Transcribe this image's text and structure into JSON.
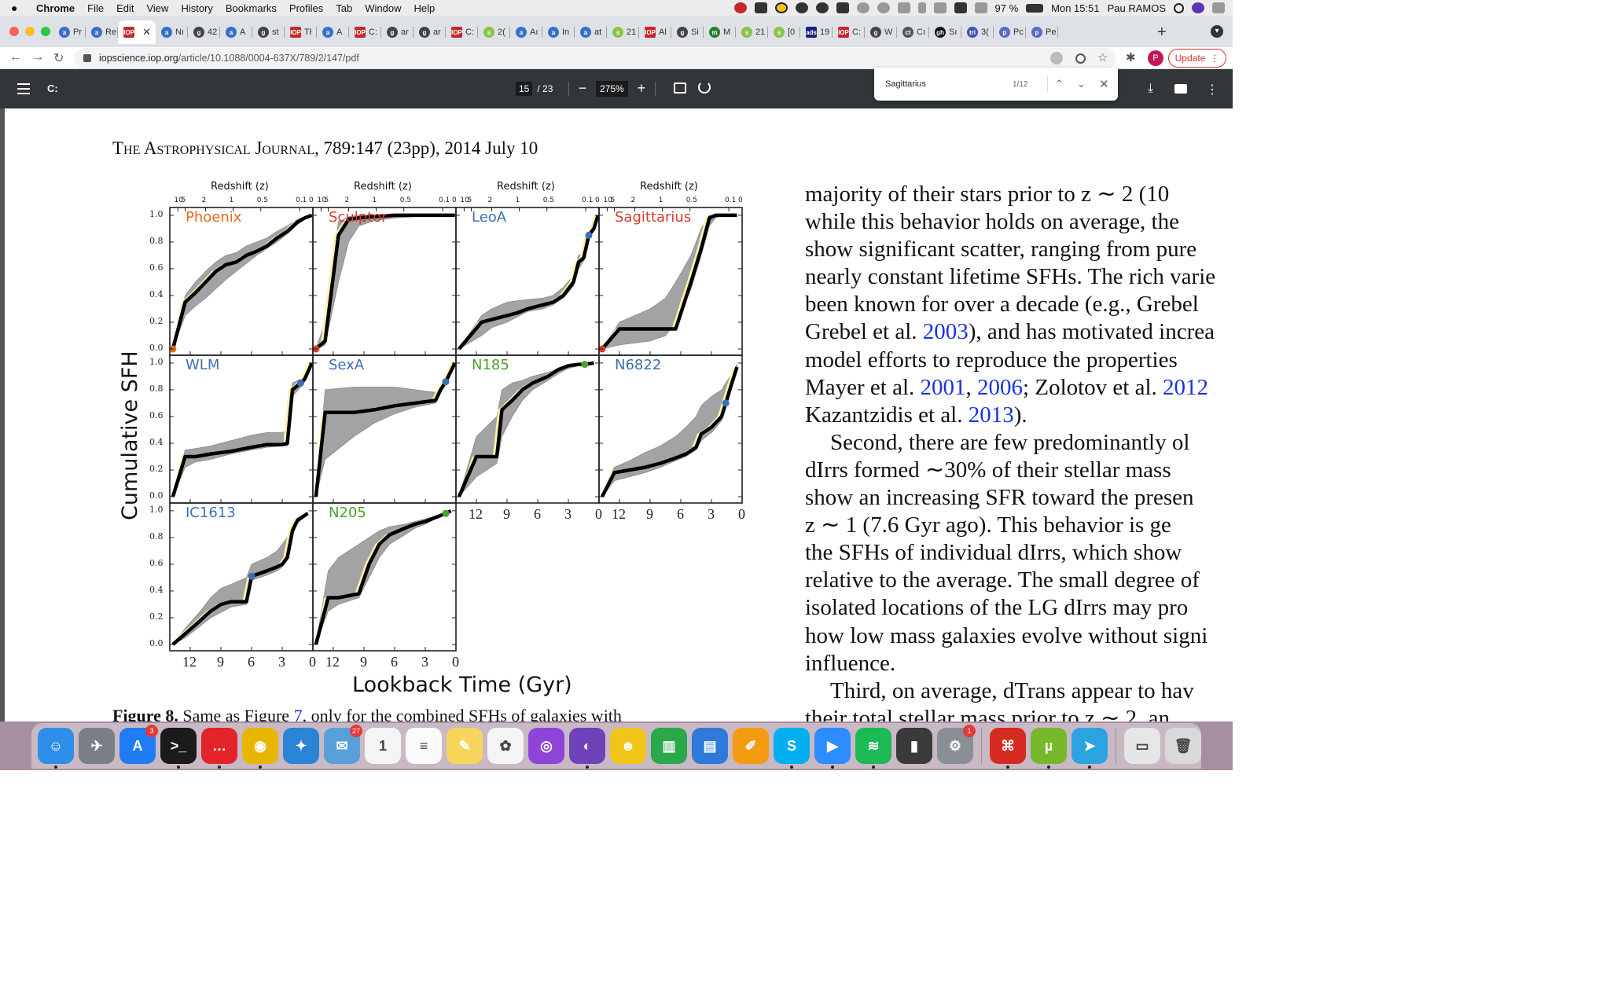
{
  "menubar": {
    "app_name": "Chrome",
    "menus": [
      "File",
      "Edit",
      "View",
      "History",
      "Bookmarks",
      "Profiles",
      "Tab",
      "Window",
      "Help"
    ],
    "battery": "97 %",
    "clock": "Mon 15:51",
    "user": "Pau RAMOS"
  },
  "tabs": [
    {
      "label": "Pr",
      "favicon": "a",
      "color": "#3b6ecb"
    },
    {
      "label": "Re",
      "favicon": "a",
      "color": "#3b6ecb"
    },
    {
      "label": "IOP",
      "favicon": "IOP",
      "color": "#c62828",
      "active": true
    },
    {
      "label": "Nı",
      "favicon": "a",
      "color": "#3b6ecb"
    },
    {
      "label": "42",
      "favicon": "g",
      "color": "#444"
    },
    {
      "label": "A",
      "favicon": "a",
      "color": "#3b6ecb"
    },
    {
      "label": "st",
      "favicon": "g",
      "color": "#444"
    },
    {
      "label": "Tł",
      "favicon": "IOP",
      "color": "#c62828"
    },
    {
      "label": "A",
      "favicon": "a",
      "color": "#3b6ecb"
    },
    {
      "label": "C:",
      "favicon": "IOP",
      "color": "#c62828"
    },
    {
      "label": "ar",
      "favicon": "g",
      "color": "#444"
    },
    {
      "label": "ar",
      "favicon": "g",
      "color": "#444"
    },
    {
      "label": "C:",
      "favicon": "IOP",
      "color": "#c62828"
    },
    {
      "label": "2(",
      "favicon": "s",
      "color": "#8bc34a"
    },
    {
      "label": "Aı",
      "favicon": "a",
      "color": "#3b6ecb"
    },
    {
      "label": "In",
      "favicon": "a",
      "color": "#3b6ecb"
    },
    {
      "label": "at",
      "favicon": "a",
      "color": "#3b6ecb"
    },
    {
      "label": "21",
      "favicon": "s",
      "color": "#8bc34a"
    },
    {
      "label": "Al",
      "favicon": "IOP",
      "color": "#c62828"
    },
    {
      "label": "Si",
      "favicon": "g",
      "color": "#444"
    },
    {
      "label": "M",
      "favicon": "m",
      "color": "#2e7d32"
    },
    {
      "label": "21",
      "favicon": "s",
      "color": "#8bc34a"
    },
    {
      "label": "[0",
      "favicon": "s",
      "color": "#8bc34a"
    },
    {
      "label": "19",
      "favicon": "ads",
      "color": "#1a237e"
    },
    {
      "label": "C:",
      "favicon": "IOP",
      "color": "#c62828"
    },
    {
      "label": "W",
      "favicon": "g",
      "color": "#444"
    },
    {
      "label": "Cı",
      "favicon": "ct",
      "color": "#555"
    },
    {
      "label": "Sı",
      "favicon": "gh",
      "color": "#111"
    },
    {
      "label": "3(",
      "favicon": "tri",
      "color": "#3f51b5"
    },
    {
      "label": "Pc",
      "favicon": "p",
      "color": "#5c6bc0"
    },
    {
      "label": "Pe",
      "favicon": "p",
      "color": "#5c6bc0"
    }
  ],
  "toolbar": {
    "url_host": "iopscience.iop.org",
    "url_path": "/article/10.1088/0004-637X/789/2/147/pdf",
    "profile_initial": "P",
    "update_label": "Update"
  },
  "pdf": {
    "title": "C:",
    "page_current": "15",
    "page_total": "/ 23",
    "zoom": "275%"
  },
  "find": {
    "query": "Sagittarius",
    "count": "1/12"
  },
  "page": {
    "journal_sc": "The Astrophysical Journal",
    "journal_rest": ", 789:147 (23pp), 2014 July 10",
    "caption_label": "Figure 8.",
    "caption_text_a": " Same as Figure ",
    "caption_ref": "7",
    "caption_text_b": ", only for the combined SFHs of galaxies with",
    "text_lines": [
      {
        "t": "majority of their stars prior to z ∼ 2 (10"
      },
      {
        "t": "while this behavior holds on average, the"
      },
      {
        "t": "show significant scatter, ranging from pure"
      },
      {
        "t": "nearly constant lifetime SFHs. The rich varie"
      },
      {
        "t": "been known for over a decade (e.g., Grebel"
      },
      {
        "t": "Grebel et al. ",
        "ref": "2003",
        "t2": "), and has motivated increa"
      },
      {
        "t": "model efforts to reproduce the properties"
      },
      {
        "t": "Mayer et al. ",
        "ref": "2001",
        "t2": ", ",
        "ref2": "2006",
        "t3": "; Zolotov et al. ",
        "ref3": "2012"
      },
      {
        "t": "Kazantzidis et al. ",
        "ref": "2013",
        "t2": ")."
      },
      {
        "t": "Second, there are few predominantly ol",
        "indent": true
      },
      {
        "t": "dIrrs formed ∼30% of their stellar mass"
      },
      {
        "t": "show an increasing SFR toward the presen"
      },
      {
        "t": "z ∼ 1 (7.6 Gyr ago). This behavior is ge"
      },
      {
        "t": "the SFHs of individual dIrrs, which show"
      },
      {
        "t": "relative to the average. The small degree of"
      },
      {
        "t": "isolated locations of the LG dIrrs may pro"
      },
      {
        "t": "how low mass galaxies evolve without signi"
      },
      {
        "t": "influence."
      },
      {
        "t": "Third, on average, dTrans appear to hav",
        "indent": true
      },
      {
        "t": "their total stellar mass prior to z ∼ 2, an"
      }
    ]
  },
  "chart_data": {
    "type": "line",
    "ylabel": "Cumulative SFH",
    "xlabel": "Lookback Time (Gyr)",
    "top_axis_label": "Redshift (z)",
    "x_ticks": [
      12,
      9,
      6,
      3,
      0
    ],
    "x_tick_labels": [
      "12",
      "9",
      "6",
      "3",
      "0"
    ],
    "y_ticks": [
      "0.0",
      "0.2",
      "0.4",
      "0.6",
      "0.8",
      "1.0"
    ],
    "z_ticks": [
      "10",
      "5",
      "2",
      "1",
      "0.5",
      "0.1",
      "0"
    ],
    "z_tick_values": [
      13.2,
      12.5,
      10.5,
      7.8,
      5.1,
      1.3,
      0
    ],
    "xlim": [
      14,
      0
    ],
    "ylim": [
      0,
      1.05
    ],
    "panels": [
      {
        "name": "Phoenix",
        "color": "#e06a1b",
        "dot": {
          "x": 13.7,
          "y": 0.0,
          "color": "#e06a1b"
        },
        "x": [
          13.7,
          12.5,
          11.5,
          10.5,
          9.5,
          8.5,
          7.5,
          6.5,
          5.5,
          4.5,
          3.5,
          2.5,
          1.5,
          0.8,
          0.1
        ],
        "y": [
          0.0,
          0.35,
          0.42,
          0.5,
          0.58,
          0.63,
          0.65,
          0.7,
          0.73,
          0.77,
          0.83,
          0.88,
          0.95,
          0.98,
          1.0
        ],
        "lo": [
          0.0,
          0.25,
          0.32,
          0.38,
          0.45,
          0.52,
          0.58,
          0.64,
          0.7,
          0.75,
          0.8,
          0.86,
          0.93,
          0.97,
          1.0
        ],
        "hi": [
          0.0,
          0.4,
          0.5,
          0.58,
          0.65,
          0.7,
          0.72,
          0.77,
          0.8,
          0.83,
          0.88,
          0.92,
          0.97,
          0.99,
          1.0
        ]
      },
      {
        "name": "Sculptor",
        "color": "#d63b2b",
        "dot": {
          "x": 13.7,
          "y": 0.0,
          "color": "#d63b2b"
        },
        "x": [
          13.7,
          12.8,
          11.5,
          10.5,
          9.5,
          8,
          6,
          4,
          2,
          0.1
        ],
        "y": [
          0.0,
          0.06,
          0.85,
          0.97,
          0.98,
          0.99,
          1.0,
          1.0,
          1.0,
          1.0
        ],
        "lo": [
          0.0,
          0.03,
          0.5,
          0.8,
          0.92,
          0.96,
          0.98,
          0.99,
          1.0,
          1.0
        ],
        "hi": [
          0.0,
          0.2,
          0.95,
          0.99,
          1.0,
          1.0,
          1.0,
          1.0,
          1.0,
          1.0
        ]
      },
      {
        "name": "LeoA",
        "color": "#3d6fb5",
        "dot": {
          "x": 1.0,
          "y": 0.85,
          "color": "#3d6fb5"
        },
        "x": [
          13.7,
          11.5,
          10.5,
          9,
          8,
          7,
          5.5,
          4.5,
          3.5,
          2.5,
          2,
          1.5,
          1.0,
          0.5,
          0.1
        ],
        "y": [
          0.0,
          0.2,
          0.22,
          0.25,
          0.27,
          0.3,
          0.33,
          0.35,
          0.4,
          0.5,
          0.65,
          0.68,
          0.85,
          0.9,
          1.0
        ],
        "lo": [
          0.0,
          0.1,
          0.16,
          0.2,
          0.24,
          0.28,
          0.3,
          0.33,
          0.38,
          0.47,
          0.6,
          0.66,
          0.83,
          0.89,
          1.0
        ],
        "hi": [
          0.0,
          0.25,
          0.3,
          0.35,
          0.36,
          0.37,
          0.38,
          0.4,
          0.46,
          0.55,
          0.7,
          0.72,
          0.87,
          0.92,
          1.0
        ]
      },
      {
        "name": "Sagittarius",
        "color": "#d63b2b",
        "dot": {
          "x": 13.7,
          "y": 0.0,
          "color": "#d63b2b"
        },
        "x": [
          13.7,
          12,
          9,
          7.5,
          6.5,
          5,
          4,
          3.2,
          2.6,
          2,
          1,
          0.5
        ],
        "y": [
          0.0,
          0.15,
          0.15,
          0.15,
          0.15,
          0.5,
          0.75,
          0.98,
          1.0,
          1.0,
          1.0,
          1.0
        ],
        "lo": [
          0.0,
          0.03,
          0.06,
          0.1,
          0.2,
          0.45,
          0.7,
          0.92,
          0.98,
          1.0,
          1.0,
          1.0
        ],
        "hi": [
          0.0,
          0.2,
          0.3,
          0.38,
          0.5,
          0.7,
          0.9,
          1.0,
          1.0,
          1.0,
          1.0,
          1.0
        ]
      },
      {
        "name": "WLM",
        "color": "#3d6fb5",
        "dot": {
          "x": 1.2,
          "y": 0.85,
          "color": "#3d6fb5"
        },
        "x": [
          13.7,
          12.5,
          11.5,
          10,
          8,
          6,
          4.5,
          3,
          2.5,
          2,
          1.2,
          0.8,
          0.1
        ],
        "y": [
          0.0,
          0.3,
          0.3,
          0.32,
          0.34,
          0.37,
          0.39,
          0.39,
          0.4,
          0.8,
          0.85,
          0.88,
          1.0
        ],
        "lo": [
          0.0,
          0.22,
          0.26,
          0.28,
          0.32,
          0.35,
          0.37,
          0.38,
          0.38,
          0.75,
          0.82,
          0.86,
          1.0
        ],
        "hi": [
          0.0,
          0.35,
          0.36,
          0.38,
          0.42,
          0.46,
          0.48,
          0.48,
          0.5,
          0.85,
          0.88,
          0.9,
          1.0
        ]
      },
      {
        "name": "SexA",
        "color": "#3d6fb5",
        "dot": {
          "x": 1.0,
          "y": 0.86,
          "color": "#3d6fb5"
        },
        "x": [
          13.7,
          12.8,
          10,
          8,
          6,
          4,
          2,
          1.5,
          1.0,
          0.1
        ],
        "y": [
          0.0,
          0.63,
          0.63,
          0.65,
          0.68,
          0.7,
          0.72,
          0.8,
          0.86,
          1.0
        ],
        "lo": [
          0.0,
          0.28,
          0.45,
          0.55,
          0.62,
          0.67,
          0.7,
          0.78,
          0.85,
          1.0
        ],
        "hi": [
          0.0,
          0.8,
          0.82,
          0.82,
          0.82,
          0.8,
          0.78,
          0.82,
          0.87,
          1.0
        ]
      },
      {
        "name": "N185",
        "color": "#4aa12f",
        "dot": {
          "x": 1.4,
          "y": 0.99,
          "color": "#4aa12f"
        },
        "x": [
          13.7,
          12,
          10,
          9.5,
          8.5,
          7.5,
          6.5,
          5,
          4,
          3,
          2,
          1.4,
          0.5
        ],
        "y": [
          0.0,
          0.3,
          0.3,
          0.65,
          0.72,
          0.8,
          0.85,
          0.9,
          0.95,
          0.98,
          0.99,
          0.99,
          1.0
        ],
        "lo": [
          0.0,
          0.15,
          0.25,
          0.45,
          0.6,
          0.72,
          0.8,
          0.87,
          0.92,
          0.96,
          0.98,
          0.99,
          1.0
        ],
        "hi": [
          0.0,
          0.45,
          0.6,
          0.8,
          0.85,
          0.87,
          0.9,
          0.93,
          0.96,
          0.98,
          0.99,
          1.0,
          1.0
        ]
      },
      {
        "name": "N6822",
        "color": "#3d6fb5",
        "dot": {
          "x": 1.6,
          "y": 0.7,
          "color": "#3d6fb5"
        },
        "x": [
          13.7,
          12.5,
          11,
          9.5,
          8,
          6.5,
          5.5,
          4.5,
          4,
          3,
          2,
          1.6,
          1,
          0.5
        ],
        "y": [
          0.0,
          0.18,
          0.2,
          0.22,
          0.25,
          0.29,
          0.32,
          0.37,
          0.47,
          0.52,
          0.6,
          0.7,
          0.85,
          0.97
        ],
        "lo": [
          0.0,
          0.12,
          0.15,
          0.18,
          0.22,
          0.27,
          0.3,
          0.35,
          0.42,
          0.48,
          0.57,
          0.68,
          0.83,
          0.95
        ],
        "hi": [
          0.0,
          0.22,
          0.27,
          0.33,
          0.38,
          0.45,
          0.52,
          0.6,
          0.68,
          0.75,
          0.8,
          0.85,
          0.92,
          0.99
        ]
      },
      {
        "name": "IC1613",
        "color": "#3d6fb5",
        "dot": {
          "x": 6.0,
          "y": 0.51,
          "color": "#3d6fb5"
        },
        "x": [
          13.7,
          12.5,
          11,
          10,
          9,
          8,
          6.5,
          6.0,
          4.5,
          3.5,
          3,
          2.5,
          2,
          1.5,
          0.5
        ],
        "y": [
          0.0,
          0.08,
          0.18,
          0.25,
          0.3,
          0.32,
          0.32,
          0.51,
          0.55,
          0.58,
          0.6,
          0.65,
          0.85,
          0.93,
          0.98
        ],
        "lo": [
          0.0,
          0.05,
          0.14,
          0.2,
          0.24,
          0.28,
          0.3,
          0.48,
          0.52,
          0.55,
          0.58,
          0.63,
          0.83,
          0.91,
          0.97
        ],
        "hi": [
          0.0,
          0.12,
          0.25,
          0.35,
          0.42,
          0.45,
          0.5,
          0.6,
          0.65,
          0.7,
          0.75,
          0.8,
          0.9,
          0.95,
          0.99
        ]
      },
      {
        "name": "N205",
        "color": "#4aa12f",
        "dot": {
          "x": 1.0,
          "y": 0.98,
          "color": "#4aa12f"
        },
        "x": [
          13.7,
          12.5,
          11.5,
          9.5,
          8.5,
          7.5,
          6.5,
          5,
          4,
          3,
          2,
          1.0,
          0.5
        ],
        "y": [
          0.0,
          0.35,
          0.35,
          0.38,
          0.6,
          0.75,
          0.82,
          0.87,
          0.9,
          0.92,
          0.95,
          0.98,
          1.0
        ],
        "lo": [
          0.0,
          0.25,
          0.3,
          0.35,
          0.5,
          0.65,
          0.75,
          0.82,
          0.87,
          0.9,
          0.94,
          0.97,
          1.0
        ],
        "hi": [
          0.0,
          0.55,
          0.65,
          0.75,
          0.8,
          0.85,
          0.88,
          0.9,
          0.92,
          0.94,
          0.96,
          0.99,
          1.0
        ]
      }
    ]
  },
  "dock": [
    {
      "name": "finder-icon",
      "color": "#2f8fe8",
      "glyph": "☺",
      "dot": true
    },
    {
      "name": "launchpad-icon",
      "color": "#7a7f87",
      "glyph": "✈"
    },
    {
      "name": "app-store-icon",
      "color": "#1f7cf2",
      "glyph": "A",
      "badge": "3"
    },
    {
      "name": "terminal-icon",
      "color": "#1b1b1b",
      "glyph": ">_",
      "dot": true
    },
    {
      "name": "speech-icon",
      "color": "#e3242b",
      "glyph": "…",
      "dot": true
    },
    {
      "name": "chrome-icon",
      "color": "#e8b600",
      "glyph": "◉",
      "dot": true
    },
    {
      "name": "safari-icon",
      "color": "#2a84d6",
      "glyph": "✦"
    },
    {
      "name": "mail-icon",
      "color": "#5aa0d8",
      "glyph": "✉",
      "badge": "27"
    },
    {
      "name": "calendar-icon",
      "color": "#f4f4f4",
      "glyph": "1"
    },
    {
      "name": "reminders-icon",
      "color": "#fafafa",
      "glyph": "≡"
    },
    {
      "name": "notes-icon",
      "color": "#f6d55c",
      "glyph": "✎"
    },
    {
      "name": "photos-icon",
      "color": "#f4f4f4",
      "glyph": "✿"
    },
    {
      "name": "podcasts-icon",
      "color": "#8e44d8",
      "glyph": "◎"
    },
    {
      "name": "github-icon",
      "color": "#6e42b8",
      "glyph": "◐",
      "dot": true
    },
    {
      "name": "cyberduck-icon",
      "color": "#f0c419",
      "glyph": "☻"
    },
    {
      "name": "numbers-icon",
      "color": "#2aa84a",
      "glyph": "▥"
    },
    {
      "name": "keynote-icon",
      "color": "#2f7ad9",
      "glyph": "▤"
    },
    {
      "name": "pages-icon",
      "color": "#f39c12",
      "glyph": "✐"
    },
    {
      "name": "skype-icon",
      "color": "#00aff0",
      "glyph": "S",
      "dot": true
    },
    {
      "name": "zoom-icon",
      "color": "#2d8cff",
      "glyph": "▶",
      "dot": true
    },
    {
      "name": "spotify-icon",
      "color": "#1db954",
      "glyph": "≋",
      "dot": true
    },
    {
      "name": "remote-icon",
      "color": "#3a3a3a",
      "glyph": "▮"
    },
    {
      "name": "system-preferences-icon",
      "color": "#8a8f96",
      "glyph": "⚙",
      "badge": "1"
    },
    {
      "sep": true
    },
    {
      "name": "acrobat-icon",
      "color": "#d62b20",
      "glyph": "⌘",
      "dot": true
    },
    {
      "name": "utorrent-icon",
      "color": "#76b82a",
      "glyph": "µ",
      "dot": true
    },
    {
      "name": "telegram-icon",
      "color": "#2aa3e0",
      "glyph": "➤",
      "dot": true
    },
    {
      "sep": true
    },
    {
      "name": "documents-icon",
      "color": "#e6e6e6",
      "glyph": "▭"
    },
    {
      "name": "trash-icon",
      "color": "#d9d9d9",
      "glyph": "🗑"
    }
  ]
}
